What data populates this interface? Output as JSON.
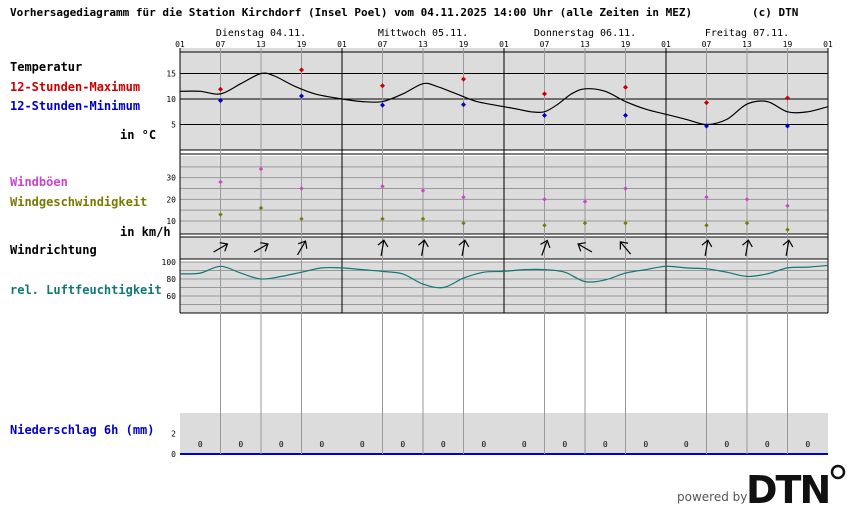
{
  "header": {
    "title": "Vorhersagediagramm für die Station Kirchdorf (Insel Poel) vom 04.11.2025 14:00 Uhr (alle Zeiten in MEZ)",
    "copyright": "(c) DTN"
  },
  "branding": {
    "powered_by": "powered by",
    "logo_text": "DTN"
  },
  "colors": {
    "max": "#cc0000",
    "min": "#0000cc",
    "gust": "#cc44cc",
    "wind": "#7a7a00",
    "humidity": "#117777",
    "precip_label": "#0000cc",
    "panel": "#dcdcdc"
  },
  "chart_data": {
    "type": "line",
    "days": [
      {
        "label": "Dienstag 04.11."
      },
      {
        "label": "Mittwoch 05.11."
      },
      {
        "label": "Donnerstag 06.11."
      },
      {
        "label": "Freitag 07.11."
      }
    ],
    "hour_ticks": [
      "01",
      "07",
      "13",
      "19",
      "01",
      "07",
      "13",
      "19",
      "01",
      "07",
      "13",
      "19",
      "01",
      "07",
      "13",
      "19",
      "01"
    ],
    "x_hours": [
      0,
      6,
      12,
      18,
      24,
      30,
      36,
      42,
      48,
      54,
      60,
      66,
      72,
      78,
      84,
      90,
      96
    ],
    "temperature": {
      "label": "Temperatur",
      "unit_label": "in °C",
      "ylim": [
        0,
        20
      ],
      "yticks": [
        5,
        10,
        15
      ],
      "curve": {
        "x": [
          0,
          3,
          6,
          9,
          12,
          14,
          17,
          20,
          24,
          27,
          30,
          33,
          36,
          38,
          41,
          44,
          48,
          50,
          52,
          54,
          56,
          58,
          60,
          63,
          66,
          69,
          72,
          75,
          78,
          81,
          84,
          87,
          90,
          93,
          96
        ],
        "y": [
          11.5,
          11.5,
          11.0,
          13.0,
          15.0,
          14.5,
          12.5,
          11.0,
          10.0,
          9.5,
          9.5,
          11.0,
          13.0,
          12.5,
          11.0,
          9.5,
          8.5,
          8.0,
          7.5,
          7.5,
          9.0,
          11.0,
          12.0,
          11.5,
          9.5,
          8.0,
          7.0,
          6.0,
          5.0,
          6.0,
          9.0,
          9.5,
          7.5,
          7.5,
          8.5
        ]
      },
      "max_series": {
        "name": "12-Stunden-Maximum",
        "x": [
          6,
          18,
          30,
          42,
          54,
          66,
          78,
          90
        ],
        "values": [
          11.9,
          15.7,
          12.6,
          13.9,
          11.0,
          12.3,
          9.3,
          10.2
        ]
      },
      "min_series": {
        "name": "12-Stunden-Minimum",
        "x": [
          6,
          18,
          30,
          42,
          54,
          66,
          78,
          90
        ],
        "values": [
          9.7,
          10.6,
          8.8,
          8.9,
          6.8,
          6.8,
          4.7,
          4.7
        ]
      }
    },
    "wind": {
      "unit_label": "in km/h",
      "ylim": [
        4,
        40
      ],
      "yticks": [
        10,
        20,
        30
      ],
      "gusts": {
        "name": "Windböen",
        "x": [
          6,
          12,
          18,
          30,
          36,
          42,
          54,
          60,
          66,
          78,
          84,
          90
        ],
        "values": [
          28,
          34,
          25,
          26,
          24,
          21,
          20,
          19,
          25,
          21,
          20,
          17
        ]
      },
      "speed": {
        "name": "Windgeschwindigkeit",
        "x": [
          6,
          12,
          18,
          30,
          36,
          42,
          54,
          60,
          66,
          78,
          84,
          90
        ],
        "values": [
          13,
          16,
          11,
          11,
          11,
          9,
          8,
          9,
          9,
          8,
          9,
          6
        ]
      }
    },
    "direction": {
      "label": "Windrichtung",
      "x": [
        6,
        12,
        18,
        30,
        36,
        42,
        54,
        60,
        66,
        78,
        84,
        90
      ],
      "angles_deg": [
        60,
        60,
        30,
        10,
        10,
        10,
        20,
        -60,
        -40,
        10,
        10,
        10
      ]
    },
    "humidity": {
      "label": "rel. Luftfeuchtigkeit",
      "ylim": [
        40,
        100
      ],
      "yticks": [
        60,
        80,
        100
      ],
      "curve": {
        "x": [
          0,
          3,
          6,
          9,
          12,
          15,
          18,
          21,
          24,
          27,
          30,
          33,
          36,
          39,
          42,
          45,
          48,
          51,
          54,
          57,
          60,
          63,
          66,
          69,
          72,
          75,
          78,
          81,
          84,
          87,
          90,
          93,
          96
        ],
        "y": [
          86,
          87,
          95,
          87,
          80,
          83,
          88,
          93,
          93,
          91,
          89,
          86,
          74,
          70,
          81,
          88,
          89,
          91,
          91,
          88,
          77,
          79,
          87,
          91,
          95,
          93,
          92,
          88,
          83,
          86,
          93,
          94,
          96
        ]
      }
    },
    "precip": {
      "label": "Niederschlag 6h (mm)",
      "ylim": [
        0,
        4
      ],
      "yticks": [
        0,
        2
      ],
      "x": [
        3,
        9,
        15,
        21,
        27,
        33,
        39,
        45,
        51,
        57,
        63,
        69,
        75,
        81,
        87,
        93
      ],
      "values": [
        0,
        0,
        0,
        0,
        0,
        0,
        0,
        0,
        0,
        0,
        0,
        0,
        0,
        0,
        0,
        0
      ]
    }
  }
}
